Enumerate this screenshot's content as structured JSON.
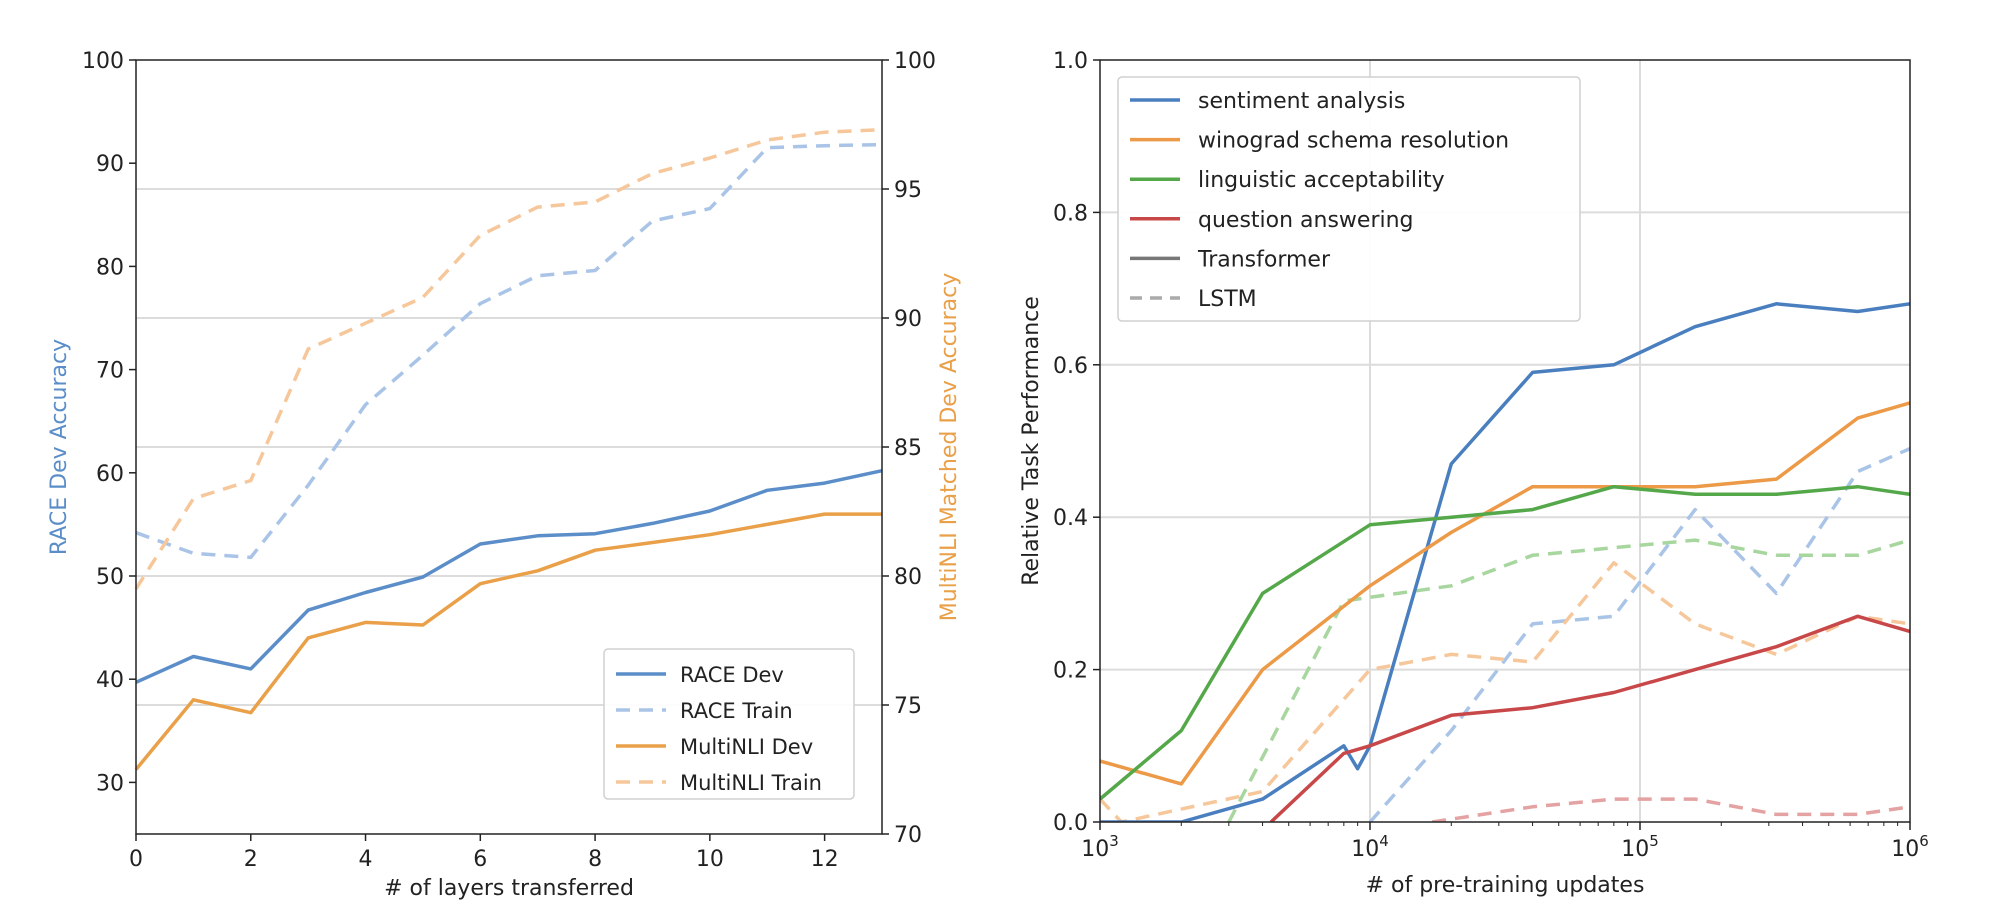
{
  "chart_data": [
    {
      "type": "line",
      "xlabel": "# of layers transferred",
      "ylabel": "RACE Dev Accuracy",
      "ylabel_right": "MultiNLI Matched Dev Accuracy",
      "xlim": [
        0,
        13
      ],
      "ylim": [
        25,
        100
      ],
      "ylim_right": [
        70,
        100
      ],
      "x_ticks": [
        0,
        2,
        4,
        6,
        8,
        10,
        12
      ],
      "y_ticks": [
        30,
        40,
        50,
        60,
        70,
        80,
        90,
        100
      ],
      "y_ticks_right": [
        70,
        75,
        80,
        85,
        90,
        95,
        100
      ],
      "grid": "horizontal",
      "legend_position": "lower-right",
      "x": [
        0,
        1,
        2,
        3,
        4,
        5,
        6,
        7,
        8,
        9,
        10,
        11,
        12,
        13
      ],
      "series": [
        {
          "name": "RACE Dev",
          "axis": "left",
          "style": "solid",
          "color": "#5b8ec9",
          "values": [
            39.7,
            42.2,
            41.0,
            46.7,
            48.4,
            49.9,
            53.1,
            53.9,
            54.1,
            55.1,
            56.3,
            58.3,
            59.0,
            60.2
          ]
        },
        {
          "name": "RACE Train",
          "axis": "left",
          "style": "dashed",
          "color": "#a9c4e6",
          "values": [
            54.2,
            52.2,
            51.8,
            58.8,
            66.6,
            71.4,
            76.4,
            79.1,
            79.6,
            84.4,
            85.6,
            91.5,
            91.7,
            91.8
          ]
        },
        {
          "name": "MultiNLI Dev",
          "axis": "right",
          "style": "solid",
          "color": "#e9a048",
          "values": [
            72.5,
            75.2,
            74.7,
            77.6,
            78.2,
            78.1,
            79.7,
            80.2,
            81.0,
            81.3,
            81.6,
            82.0,
            82.4,
            82.4
          ]
        },
        {
          "name": "MultiNLI Train",
          "axis": "right",
          "style": "dashed",
          "color": "#f6c79a",
          "values": [
            79.5,
            83.0,
            83.7,
            88.8,
            89.8,
            90.8,
            93.2,
            94.3,
            94.5,
            95.6,
            96.2,
            96.9,
            97.2,
            97.3
          ]
        }
      ]
    },
    {
      "type": "line",
      "xlabel": "# of pre-training updates",
      "ylabel": "Relative Task Performance",
      "x_scale": "log",
      "xlim": [
        1000,
        1000000
      ],
      "ylim": [
        0,
        1.0
      ],
      "x_ticks": [
        {
          "base": "10",
          "exp": "3"
        },
        {
          "base": "10",
          "exp": "4"
        },
        {
          "base": "10",
          "exp": "5"
        },
        {
          "base": "10",
          "exp": "6"
        }
      ],
      "y_ticks": [
        "0.0",
        "0.2",
        "0.4",
        "0.6",
        "0.8",
        "1.0"
      ],
      "grid": "both",
      "legend_position": "upper-left",
      "legend": [
        {
          "name": "sentiment analysis",
          "style": "solid",
          "color": "#4a7fbf"
        },
        {
          "name": "winograd schema resolution",
          "style": "solid",
          "color": "#ec9a48"
        },
        {
          "name": "linguistic acceptability",
          "style": "solid",
          "color": "#55a84a"
        },
        {
          "name": "question answering",
          "style": "solid",
          "color": "#c8484a"
        },
        {
          "name": "Transformer",
          "style": "solid",
          "color": "#777777"
        },
        {
          "name": "LSTM",
          "style": "dashed",
          "color": "#aaaaaa"
        }
      ],
      "series": [
        {
          "name": "sentiment analysis",
          "model": "Transformer",
          "style": "solid",
          "color": "#4a7fbf",
          "x": [
            1000,
            2000,
            4000,
            8000,
            9000,
            10000,
            20000,
            40000,
            80000,
            160000,
            320000,
            640000,
            1000000
          ],
          "values": [
            0.0,
            0.0,
            0.03,
            0.1,
            0.07,
            0.1,
            0.47,
            0.59,
            0.6,
            0.65,
            0.68,
            0.67,
            0.68
          ]
        },
        {
          "name": "winograd schema resolution",
          "model": "Transformer",
          "style": "solid",
          "color": "#ec9a48",
          "x": [
            1000,
            2000,
            4000,
            10000,
            20000,
            40000,
            80000,
            160000,
            320000,
            640000,
            1000000
          ],
          "values": [
            0.08,
            0.05,
            0.2,
            0.31,
            0.38,
            0.44,
            0.44,
            0.44,
            0.45,
            0.53,
            0.55
          ]
        },
        {
          "name": "linguistic acceptability",
          "model": "Transformer",
          "style": "solid",
          "color": "#55a84a",
          "x": [
            1000,
            2000,
            4000,
            10000,
            20000,
            40000,
            80000,
            160000,
            320000,
            640000,
            1000000
          ],
          "values": [
            0.03,
            0.12,
            0.3,
            0.39,
            0.4,
            0.41,
            0.44,
            0.43,
            0.43,
            0.44,
            0.43
          ]
        },
        {
          "name": "question answering",
          "model": "Transformer",
          "style": "solid",
          "color": "#c8484a",
          "x": [
            4300,
            8000,
            10000,
            20000,
            40000,
            80000,
            160000,
            320000,
            640000,
            1000000
          ],
          "values": [
            0.0,
            0.09,
            0.1,
            0.14,
            0.15,
            0.17,
            0.2,
            0.23,
            0.27,
            0.25
          ]
        },
        {
          "name": "sentiment analysis",
          "model": "LSTM",
          "style": "dashed",
          "color": "#a9c4e6",
          "x": [
            10000,
            20000,
            40000,
            80000,
            160000,
            320000,
            640000,
            1000000
          ],
          "values": [
            0.0,
            0.12,
            0.26,
            0.27,
            0.41,
            0.3,
            0.46,
            0.49
          ]
        },
        {
          "name": "winograd schema resolution",
          "model": "LSTM",
          "style": "dashed",
          "color": "#f6c79a",
          "x": [
            1000,
            1200,
            4000,
            10000,
            20000,
            40000,
            80000,
            160000,
            320000,
            640000,
            1000000
          ],
          "values": [
            0.03,
            0.0,
            0.04,
            0.2,
            0.22,
            0.21,
            0.34,
            0.26,
            0.22,
            0.27,
            0.26
          ]
        },
        {
          "name": "linguistic acceptability",
          "model": "LSTM",
          "style": "dashed",
          "color": "#a8d69f",
          "x": [
            3000,
            8000,
            20000,
            40000,
            80000,
            160000,
            320000,
            640000,
            1000000
          ],
          "values": [
            0.0,
            0.29,
            0.31,
            0.35,
            0.36,
            0.37,
            0.35,
            0.35,
            0.37
          ]
        },
        {
          "name": "question answering",
          "model": "LSTM",
          "style": "dashed",
          "color": "#e4a2a2",
          "x": [
            17000,
            40000,
            80000,
            160000,
            320000,
            640000,
            1000000
          ],
          "values": [
            0.0,
            0.02,
            0.03,
            0.03,
            0.01,
            0.01,
            0.02
          ]
        }
      ]
    }
  ]
}
